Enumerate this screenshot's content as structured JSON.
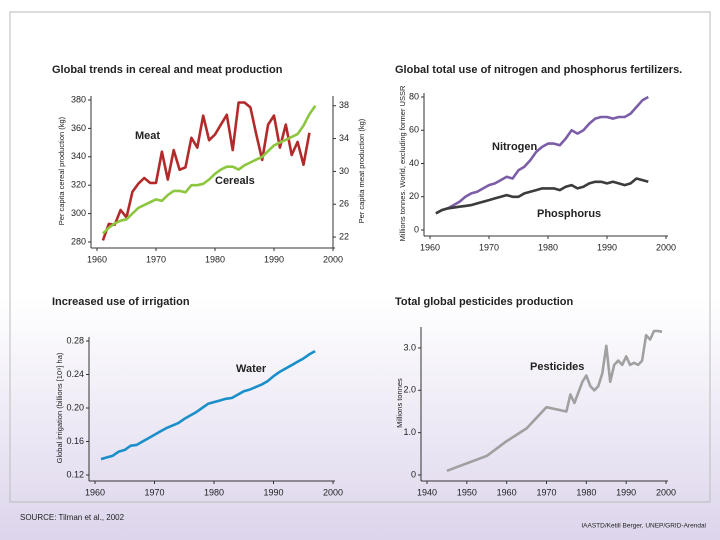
{
  "source": "SOURCE: Tilman et al., 2002",
  "credit": "IAASTD/Ketill Berger, UNEP/GRID-Arendal",
  "chart_data": [
    {
      "type": "line",
      "title": "Global trends in cereal and meat production",
      "ylabel": "Per capita cereal production (kg)",
      "y2label": "Per capita meat production (kg)",
      "x": [
        1961,
        1962,
        1963,
        1964,
        1965,
        1966,
        1967,
        1968,
        1969,
        1970,
        1971,
        1972,
        1973,
        1974,
        1975,
        1976,
        1977,
        1978,
        1979,
        1980,
        1981,
        1982,
        1983,
        1984,
        1985,
        1986,
        1987,
        1988,
        1989,
        1990,
        1991,
        1992,
        1993,
        1994,
        1995,
        1996,
        1997
      ],
      "xlim": [
        1960,
        2000
      ],
      "xticks": [
        1960,
        1970,
        1980,
        1990,
        2000
      ],
      "ylim": [
        280,
        380
      ],
      "yticks": [
        280,
        300,
        320,
        340,
        360,
        380
      ],
      "y2lim": [
        21.4,
        38.7
      ],
      "y2ticks": [
        22,
        26,
        30,
        34,
        38
      ],
      "series": [
        {
          "name": "Meat",
          "color": "#b22a2a",
          "axis": "y2",
          "values": [
            21.6,
            23.6,
            23.5,
            25.3,
            24.4,
            27.5,
            28.5,
            29.2,
            28.6,
            28.6,
            32.4,
            29.0,
            32.6,
            30.2,
            30.5,
            34.1,
            32.9,
            36.8,
            33.8,
            34.5,
            35.7,
            36.9,
            32.6,
            38.4,
            38.4,
            37.8,
            34.5,
            31.4,
            35.7,
            36.8,
            32.9,
            35.7,
            32.0,
            33.6,
            30.8,
            34.7,
            null
          ]
        },
        {
          "name": "Cereals",
          "color": "#8dc63f",
          "values": [
            286,
            290,
            293,
            295,
            296,
            300,
            304,
            306,
            308,
            310,
            309,
            313,
            316,
            316,
            315,
            320,
            320,
            321,
            324,
            328,
            331,
            333,
            333,
            331,
            334,
            336,
            338,
            340,
            344,
            348,
            350,
            352,
            354,
            356,
            362,
            370,
            376
          ]
        }
      ]
    },
    {
      "type": "line",
      "title": "Global total use of nitrogen and phosphorus fertilizers.",
      "ylabel": "Millions tonnes. World, excluding former USSR",
      "x": [
        1961,
        1962,
        1963,
        1964,
        1965,
        1966,
        1967,
        1968,
        1969,
        1970,
        1971,
        1972,
        1973,
        1974,
        1975,
        1976,
        1977,
        1978,
        1979,
        1980,
        1981,
        1982,
        1983,
        1984,
        1985,
        1986,
        1987,
        1988,
        1989,
        1990,
        1991,
        1992,
        1993,
        1994,
        1995,
        1996,
        1997
      ],
      "xlim": [
        1960,
        2000
      ],
      "xticks": [
        1960,
        1970,
        1980,
        1990,
        2000
      ],
      "ylim": [
        0,
        80
      ],
      "yticks": [
        0,
        20,
        40,
        60,
        80
      ],
      "series": [
        {
          "name": "Nitrogen",
          "color": "#7b5ea7",
          "values": [
            10,
            12,
            13,
            15,
            17,
            20,
            22,
            23,
            25,
            27,
            28,
            30,
            32,
            31,
            36,
            38,
            42,
            47,
            50,
            52,
            52,
            51,
            55,
            60,
            58,
            60,
            64,
            67,
            68,
            68,
            67,
            68,
            68,
            70,
            74,
            78,
            80
          ]
        },
        {
          "name": "Phosphorus",
          "color": "#3c3c3c",
          "values": [
            10,
            12,
            13,
            13.5,
            14,
            14.5,
            15,
            16,
            17,
            18,
            19,
            20,
            21,
            20,
            20,
            22,
            23,
            24,
            25,
            25,
            25,
            24,
            26,
            27,
            25,
            26,
            28,
            29,
            29,
            28,
            29,
            28,
            27,
            28,
            31,
            30,
            29
          ]
        }
      ]
    },
    {
      "type": "line",
      "title": "Increased use of irrigation",
      "ylabel": "Global irrigation (billions [10⁹] ha)",
      "x": [
        1961,
        1962,
        1963,
        1964,
        1965,
        1966,
        1967,
        1968,
        1969,
        1970,
        1971,
        1972,
        1973,
        1974,
        1975,
        1976,
        1977,
        1978,
        1979,
        1980,
        1981,
        1982,
        1983,
        1984,
        1985,
        1986,
        1987,
        1988,
        1989,
        1990,
        1991,
        1992,
        1993,
        1994,
        1995,
        1996,
        1997
      ],
      "xlim": [
        1960,
        2000
      ],
      "xticks": [
        1960,
        1970,
        1980,
        1990,
        2000
      ],
      "ylim": [
        0.12,
        0.28
      ],
      "yticks": [
        0.12,
        0.16,
        {
          "value": 0.2,
          "label": "0.20"
        },
        0.24,
        0.28
      ],
      "series": [
        {
          "name": "Water",
          "color": "#1b8fc9",
          "values": [
            0.139,
            0.141,
            0.143,
            0.148,
            0.15,
            0.155,
            0.156,
            0.16,
            0.164,
            0.168,
            0.172,
            0.176,
            0.179,
            0.182,
            0.187,
            0.191,
            0.195,
            0.2,
            0.205,
            0.207,
            0.209,
            0.211,
            0.212,
            0.216,
            0.22,
            0.222,
            0.225,
            0.228,
            0.232,
            0.238,
            0.243,
            0.247,
            0.251,
            0.255,
            0.259,
            0.264,
            0.268
          ]
        }
      ]
    },
    {
      "type": "line",
      "title": "Total global pesticides production",
      "ylabel": "Millions tonnes",
      "x": [
        1945,
        1955,
        1960,
        1965,
        1970,
        1975,
        1976,
        1977,
        1979,
        1980,
        1981,
        1982,
        1983,
        1984,
        1985,
        1986,
        1987,
        1988,
        1989,
        1990,
        1991,
        1992,
        1993,
        1994,
        1995,
        1996,
        1997,
        1998,
        1999
      ],
      "xlim": [
        1940,
        2000
      ],
      "xticks": [
        1940,
        1950,
        1960,
        1970,
        1980,
        1990,
        2000
      ],
      "ylim": [
        0,
        3.4
      ],
      "yticks": [
        0,
        {
          "value": 1,
          "label": "1.0"
        },
        {
          "value": 2,
          "label": "2.0"
        },
        {
          "value": 3,
          "label": "3.0"
        }
      ],
      "series": [
        {
          "name": "Pesticides",
          "color": "#a0a0a0",
          "values": [
            0.1,
            0.45,
            0.8,
            1.1,
            1.6,
            1.5,
            1.9,
            1.7,
            2.2,
            2.35,
            2.1,
            2.0,
            2.1,
            2.4,
            3.05,
            2.2,
            2.6,
            2.7,
            2.6,
            2.8,
            2.6,
            2.65,
            2.6,
            2.7,
            3.3,
            3.2,
            3.4,
            3.4,
            3.38
          ]
        }
      ]
    }
  ]
}
